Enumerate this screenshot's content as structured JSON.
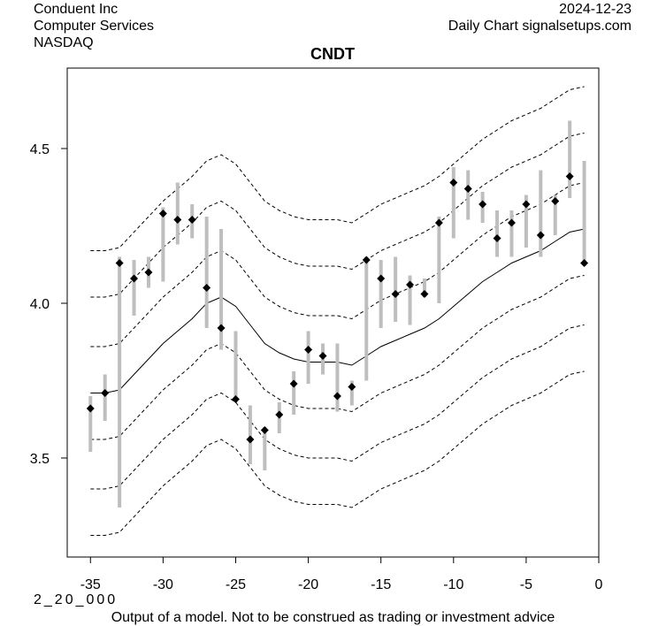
{
  "header": {
    "company": "Conduent Inc",
    "sector": "Computer Services",
    "exchange": "NASDAQ",
    "date": "2024-12-23",
    "source": "Daily Chart signalsetups.com"
  },
  "footer": {
    "code": "2_20_000",
    "disclaimer": "Output of a model. Not to be construed as trading or investment advice"
  },
  "chart_data": {
    "type": "candlestick-with-bands",
    "title": "CNDT",
    "xlabel": "",
    "ylabel": "",
    "xlim": [
      -36.6,
      0
    ],
    "ylim": [
      3.18,
      4.76
    ],
    "xticks": [
      -35,
      -30,
      -25,
      -20,
      -15,
      -10,
      -5,
      0
    ],
    "yticks": [
      3.5,
      4.0,
      4.5
    ],
    "ytick_labels": [
      "3.5",
      "4.0",
      "4.5"
    ],
    "grid": false,
    "colors": {
      "range_bar": "#bebebe",
      "close_marker": "#000000",
      "band_line": "#000000"
    },
    "bars": [
      {
        "x": -35,
        "low": 3.52,
        "high": 3.7,
        "close": 3.66
      },
      {
        "x": -34,
        "low": 3.62,
        "high": 3.77,
        "close": 3.71
      },
      {
        "x": -33,
        "low": 3.34,
        "high": 4.15,
        "close": 4.13
      },
      {
        "x": -32,
        "low": 3.96,
        "high": 4.14,
        "close": 4.08
      },
      {
        "x": -31,
        "low": 4.05,
        "high": 4.15,
        "close": 4.1
      },
      {
        "x": -30,
        "low": 4.07,
        "high": 4.31,
        "close": 4.29
      },
      {
        "x": -29,
        "low": 4.19,
        "high": 4.39,
        "close": 4.27
      },
      {
        "x": -28,
        "low": 4.21,
        "high": 4.32,
        "close": 4.27
      },
      {
        "x": -27,
        "low": 3.92,
        "high": 4.28,
        "close": 4.05
      },
      {
        "x": -26,
        "low": 3.85,
        "high": 4.24,
        "close": 3.92
      },
      {
        "x": -25,
        "low": 3.68,
        "high": 3.91,
        "close": 3.69
      },
      {
        "x": -24,
        "low": 3.48,
        "high": 3.67,
        "close": 3.56
      },
      {
        "x": -23,
        "low": 3.46,
        "high": 3.6,
        "close": 3.59
      },
      {
        "x": -22,
        "low": 3.58,
        "high": 3.68,
        "close": 3.64
      },
      {
        "x": -21,
        "low": 3.64,
        "high": 3.78,
        "close": 3.74
      },
      {
        "x": -20,
        "low": 3.74,
        "high": 3.91,
        "close": 3.85
      },
      {
        "x": -19,
        "low": 3.77,
        "high": 3.87,
        "close": 3.83
      },
      {
        "x": -18,
        "low": 3.65,
        "high": 3.87,
        "close": 3.7
      },
      {
        "x": -17,
        "low": 3.67,
        "high": 3.75,
        "close": 3.73
      },
      {
        "x": -16,
        "low": 3.75,
        "high": 4.15,
        "close": 4.14
      },
      {
        "x": -15,
        "low": 3.92,
        "high": 4.14,
        "close": 4.08
      },
      {
        "x": -14,
        "low": 3.94,
        "high": 4.15,
        "close": 4.03
      },
      {
        "x": -13,
        "low": 3.93,
        "high": 4.09,
        "close": 4.06
      },
      {
        "x": -12,
        "low": 4.02,
        "high": 4.08,
        "close": 4.03
      },
      {
        "x": -11,
        "low": 4.0,
        "high": 4.28,
        "close": 4.26
      },
      {
        "x": -10,
        "low": 4.21,
        "high": 4.44,
        "close": 4.39
      },
      {
        "x": -9,
        "low": 4.27,
        "high": 4.43,
        "close": 4.37
      },
      {
        "x": -8,
        "low": 4.26,
        "high": 4.36,
        "close": 4.32
      },
      {
        "x": -7,
        "low": 4.15,
        "high": 4.3,
        "close": 4.21
      },
      {
        "x": -6,
        "low": 4.15,
        "high": 4.3,
        "close": 4.26
      },
      {
        "x": -5,
        "low": 4.18,
        "high": 4.35,
        "close": 4.32
      },
      {
        "x": -4,
        "low": 4.15,
        "high": 4.43,
        "close": 4.22
      },
      {
        "x": -3,
        "low": 4.22,
        "high": 4.35,
        "close": 4.33
      },
      {
        "x": -2,
        "low": 4.34,
        "high": 4.59,
        "close": 4.41
      },
      {
        "x": -1,
        "low": 4.12,
        "high": 4.46,
        "close": 4.13
      }
    ],
    "center_line": {
      "x": [
        -35,
        -34,
        -33,
        -32,
        -31,
        -30,
        -29,
        -28,
        -27,
        -26,
        -25,
        -24,
        -23,
        -22,
        -21,
        -20,
        -19,
        -18,
        -17,
        -16,
        -15,
        -14,
        -13,
        -12,
        -11,
        -10,
        -9,
        -8,
        -7,
        -6,
        -5,
        -4,
        -3,
        -2,
        -1
      ],
      "y": [
        3.71,
        3.71,
        3.72,
        3.77,
        3.82,
        3.87,
        3.91,
        3.95,
        4.0,
        4.02,
        3.99,
        3.93,
        3.87,
        3.84,
        3.82,
        3.81,
        3.81,
        3.81,
        3.8,
        3.83,
        3.86,
        3.88,
        3.9,
        3.92,
        3.95,
        3.99,
        4.03,
        4.07,
        4.1,
        4.13,
        4.15,
        4.17,
        4.2,
        4.23,
        4.24
      ]
    },
    "band_offsets": [
      -0.46,
      -0.31,
      -0.15,
      0.15,
      0.31,
      0.46
    ]
  }
}
